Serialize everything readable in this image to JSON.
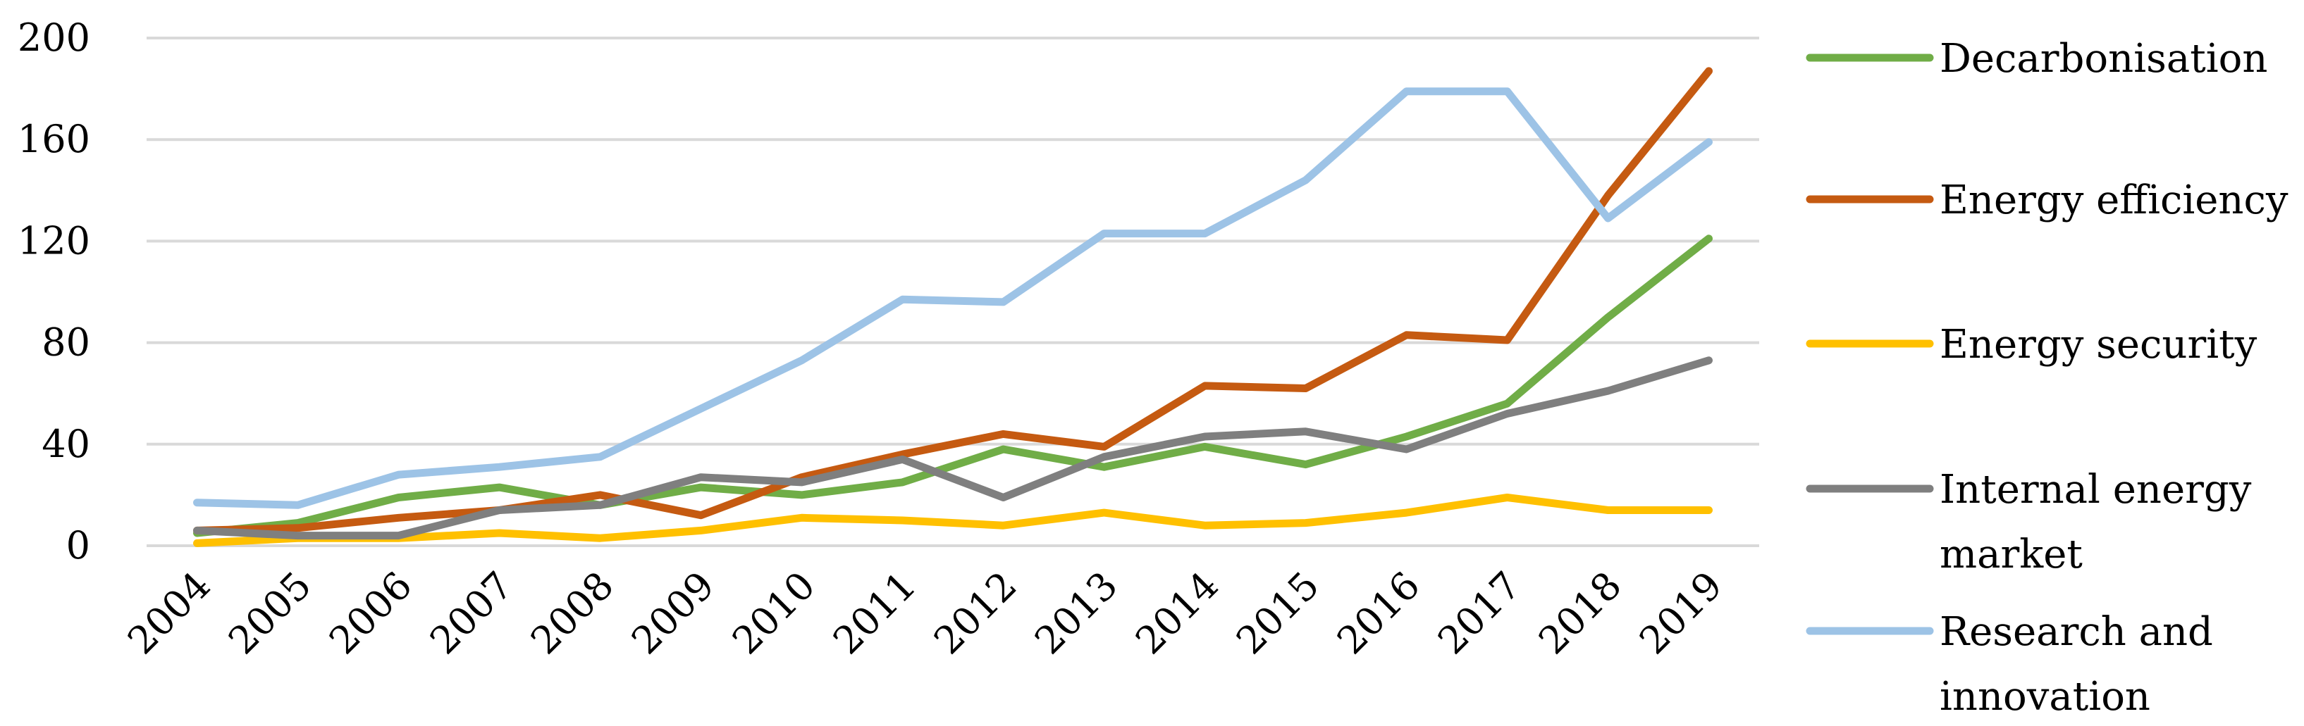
{
  "chart_data": {
    "type": "line",
    "title": "",
    "xlabel": "",
    "ylabel": "",
    "ylim": [
      0,
      200
    ],
    "yticks": [
      "0",
      "40",
      "80",
      "120",
      "160",
      "200"
    ],
    "grid": true,
    "legend_position": "right",
    "categories": [
      "2004",
      "2005",
      "2006",
      "2007",
      "2008",
      "2009",
      "2010",
      "2011",
      "2012",
      "2013",
      "2014",
      "2015",
      "2016",
      "2017",
      "2018",
      "2019"
    ],
    "series": [
      {
        "name": "Decarbonisation",
        "color": "#70ad47",
        "values": [
          5,
          9,
          19,
          23,
          16,
          23,
          20,
          25,
          38,
          31,
          39,
          32,
          43,
          56,
          90,
          121
        ]
      },
      {
        "name": "Energy efficiency",
        "color": "#c55a11",
        "values": [
          6,
          7,
          11,
          14,
          20,
          12,
          27,
          36,
          44,
          39,
          63,
          62,
          83,
          81,
          138,
          187
        ]
      },
      {
        "name": "Energy security",
        "color": "#ffc000",
        "values": [
          1,
          3,
          3,
          5,
          3,
          6,
          11,
          10,
          8,
          13,
          8,
          9,
          13,
          19,
          14,
          14
        ]
      },
      {
        "name": "Internal energy market",
        "color": "#7f7f7f",
        "values": [
          6,
          4,
          4,
          14,
          16,
          27,
          25,
          34,
          19,
          35,
          43,
          45,
          38,
          52,
          61,
          73
        ]
      },
      {
        "name": "Research and innovation",
        "color": "#9dc3e6",
        "values": [
          17,
          16,
          28,
          31,
          35,
          54,
          73,
          97,
          96,
          123,
          123,
          144,
          179,
          179,
          129,
          159
        ]
      }
    ]
  }
}
